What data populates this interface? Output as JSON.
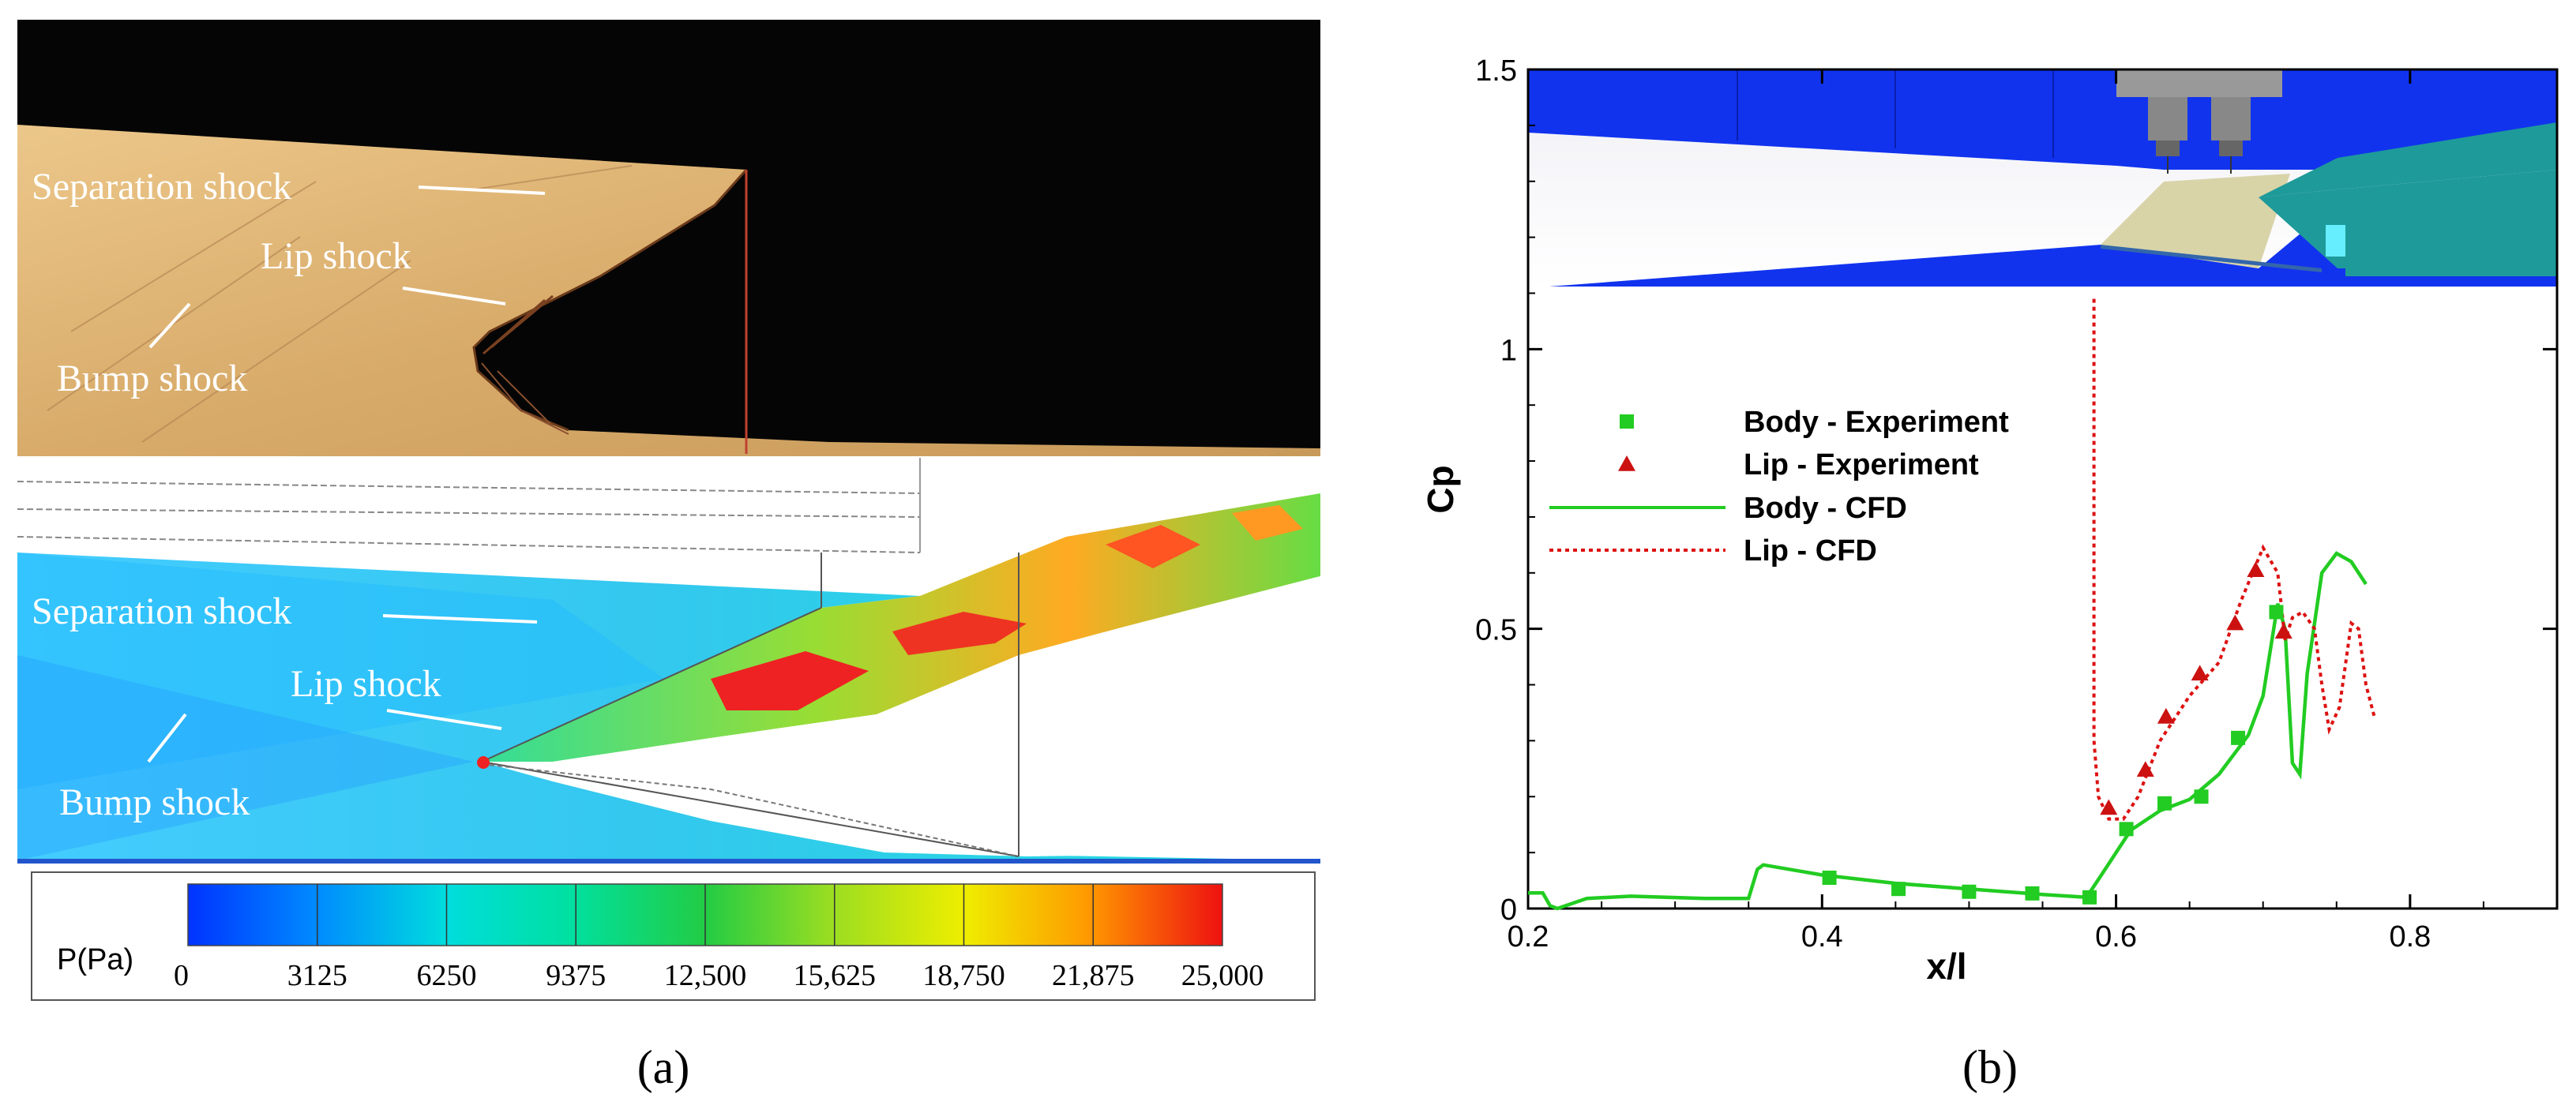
{
  "panel_a": {
    "label": "(a)",
    "schlieren": {
      "annotations": [
        "Separation shock",
        "Lip shock",
        "Bump shock"
      ]
    },
    "cfd": {
      "annotations": [
        "Separation shock",
        "Lip shock",
        "Bump shock"
      ],
      "colorbar": {
        "title": "P(Pa)",
        "ticks": [
          "0",
          "3125",
          "6250",
          "9375",
          "12,500",
          "15,625",
          "18,750",
          "21,875",
          "25,000"
        ],
        "min": 0,
        "max": 25000
      }
    }
  },
  "panel_b": {
    "label": "(b)"
  },
  "chart_data": {
    "type": "line",
    "title": "",
    "xlabel": "x/l",
    "ylabel": "Cp",
    "xlim": [
      0.2,
      0.9
    ],
    "ylim": [
      0,
      1.5
    ],
    "x_ticks": [
      "0.2",
      "0.4",
      "0.6",
      "0.8"
    ],
    "x_tick_values": [
      0.2,
      0.4,
      0.6,
      0.8
    ],
    "y_ticks": [
      "0",
      "0.5",
      "1",
      "1.5"
    ],
    "y_tick_values": [
      0,
      0.5,
      1,
      1.5
    ],
    "legend": [
      "Body - Experiment",
      "Lip - Experiment",
      "Body - CFD",
      "Lip - CFD"
    ],
    "legend_position": "center-left",
    "series": [
      {
        "name": "Body - Experiment",
        "kind": "scatter",
        "marker": "square",
        "color": "#22cc22",
        "points": [
          [
            0.405,
            0.055
          ],
          [
            0.452,
            0.035
          ],
          [
            0.5,
            0.03
          ],
          [
            0.543,
            0.027
          ],
          [
            0.582,
            0.02
          ],
          [
            0.607,
            0.142
          ],
          [
            0.633,
            0.188
          ],
          [
            0.658,
            0.2
          ],
          [
            0.683,
            0.305
          ],
          [
            0.709,
            0.53
          ]
        ]
      },
      {
        "name": "Lip - Experiment",
        "kind": "scatter",
        "marker": "triangle",
        "color": "#cc1111",
        "points": [
          [
            0.595,
            0.18
          ],
          [
            0.62,
            0.248
          ],
          [
            0.634,
            0.343
          ],
          [
            0.657,
            0.42
          ],
          [
            0.681,
            0.51
          ],
          [
            0.695,
            0.605
          ],
          [
            0.714,
            0.495
          ]
        ]
      },
      {
        "name": "Body - CFD",
        "kind": "line",
        "style": "solid",
        "color": "#22cc22",
        "points": [
          [
            0.2,
            0.028
          ],
          [
            0.21,
            0.028
          ],
          [
            0.215,
            0.005
          ],
          [
            0.22,
            0.0
          ],
          [
            0.24,
            0.018
          ],
          [
            0.27,
            0.022
          ],
          [
            0.32,
            0.018
          ],
          [
            0.35,
            0.018
          ],
          [
            0.356,
            0.07
          ],
          [
            0.36,
            0.078
          ],
          [
            0.4,
            0.06
          ],
          [
            0.45,
            0.045
          ],
          [
            0.5,
            0.035
          ],
          [
            0.55,
            0.025
          ],
          [
            0.58,
            0.02
          ],
          [
            0.59,
            0.06
          ],
          [
            0.6,
            0.1
          ],
          [
            0.61,
            0.14
          ],
          [
            0.63,
            0.175
          ],
          [
            0.65,
            0.195
          ],
          [
            0.67,
            0.24
          ],
          [
            0.69,
            0.31
          ],
          [
            0.7,
            0.38
          ],
          [
            0.71,
            0.545
          ],
          [
            0.715,
            0.5
          ],
          [
            0.72,
            0.26
          ],
          [
            0.725,
            0.24
          ],
          [
            0.73,
            0.42
          ],
          [
            0.74,
            0.6
          ],
          [
            0.75,
            0.635
          ],
          [
            0.76,
            0.62
          ],
          [
            0.77,
            0.58
          ]
        ]
      },
      {
        "name": "Lip - CFD",
        "kind": "line",
        "style": "dotted",
        "color": "#dd1111",
        "points": [
          [
            0.585,
            1.09
          ],
          [
            0.585,
            0.75
          ],
          [
            0.585,
            0.3
          ],
          [
            0.588,
            0.2
          ],
          [
            0.595,
            0.16
          ],
          [
            0.605,
            0.16
          ],
          [
            0.615,
            0.2
          ],
          [
            0.63,
            0.3
          ],
          [
            0.65,
            0.38
          ],
          [
            0.67,
            0.44
          ],
          [
            0.685,
            0.55
          ],
          [
            0.7,
            0.645
          ],
          [
            0.71,
            0.6
          ],
          [
            0.715,
            0.48
          ],
          [
            0.72,
            0.52
          ],
          [
            0.727,
            0.53
          ],
          [
            0.735,
            0.5
          ],
          [
            0.74,
            0.4
          ],
          [
            0.745,
            0.32
          ],
          [
            0.752,
            0.36
          ],
          [
            0.76,
            0.51
          ],
          [
            0.765,
            0.5
          ],
          [
            0.77,
            0.4
          ],
          [
            0.776,
            0.34
          ]
        ]
      }
    ]
  }
}
